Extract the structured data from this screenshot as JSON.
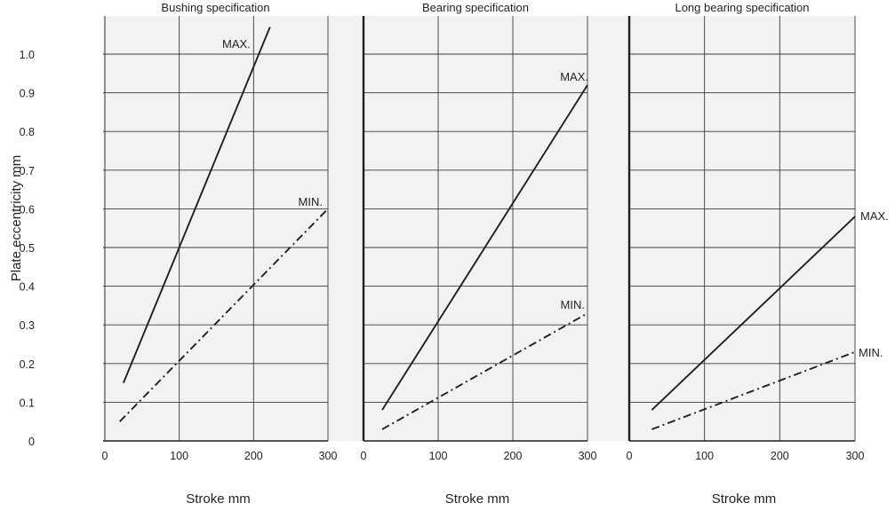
{
  "chart_data": {
    "type": "line",
    "ylabel": "Plate eccentricity  mm",
    "ylim": [
      0,
      1.0
    ],
    "yticks": [
      "0",
      "0.1",
      "0.2",
      "0.3",
      "0.4",
      "0.5",
      "0.6",
      "0.7",
      "0.8",
      "0.9",
      "1.0"
    ],
    "grid": true,
    "panels": [
      {
        "title": "Bushing specification",
        "xlabel": "Stroke  mm",
        "xlim": [
          0,
          300
        ],
        "xticks": [
          "0",
          "100",
          "200",
          "300"
        ],
        "series": [
          {
            "name": "MAX.",
            "style": "solid",
            "x": [
              25,
              222
            ],
            "y": [
              0.15,
              1.07
            ]
          },
          {
            "name": "MIN.",
            "style": "dash-dot",
            "x": [
              20,
              300
            ],
            "y": [
              0.05,
              0.6
            ]
          }
        ]
      },
      {
        "title": "Bearing specification",
        "xlabel": "Stroke  mm",
        "xlim": [
          0,
          300
        ],
        "xticks": [
          "0",
          "100",
          "200",
          "300"
        ],
        "series": [
          {
            "name": "MAX.",
            "style": "solid",
            "x": [
              25,
              300
            ],
            "y": [
              0.08,
              0.92
            ]
          },
          {
            "name": "MIN.",
            "style": "dash-dot",
            "x": [
              25,
              300
            ],
            "y": [
              0.03,
              0.33
            ]
          }
        ]
      },
      {
        "title": "Long bearing specification",
        "xlabel": "Stroke  mm",
        "xlim": [
          0,
          300
        ],
        "xticks": [
          "0",
          "100",
          "200",
          "300"
        ],
        "series": [
          {
            "name": "MAX.",
            "style": "solid",
            "x": [
              30,
              300
            ],
            "y": [
              0.08,
              0.58
            ]
          },
          {
            "name": "MIN.",
            "style": "dash-dot",
            "x": [
              30,
              300
            ],
            "y": [
              0.03,
              0.23
            ]
          }
        ]
      }
    ]
  },
  "colors": {
    "panel_bg": "#f2f2f2",
    "grid": "#3a3a3a",
    "line": "#231f20"
  }
}
